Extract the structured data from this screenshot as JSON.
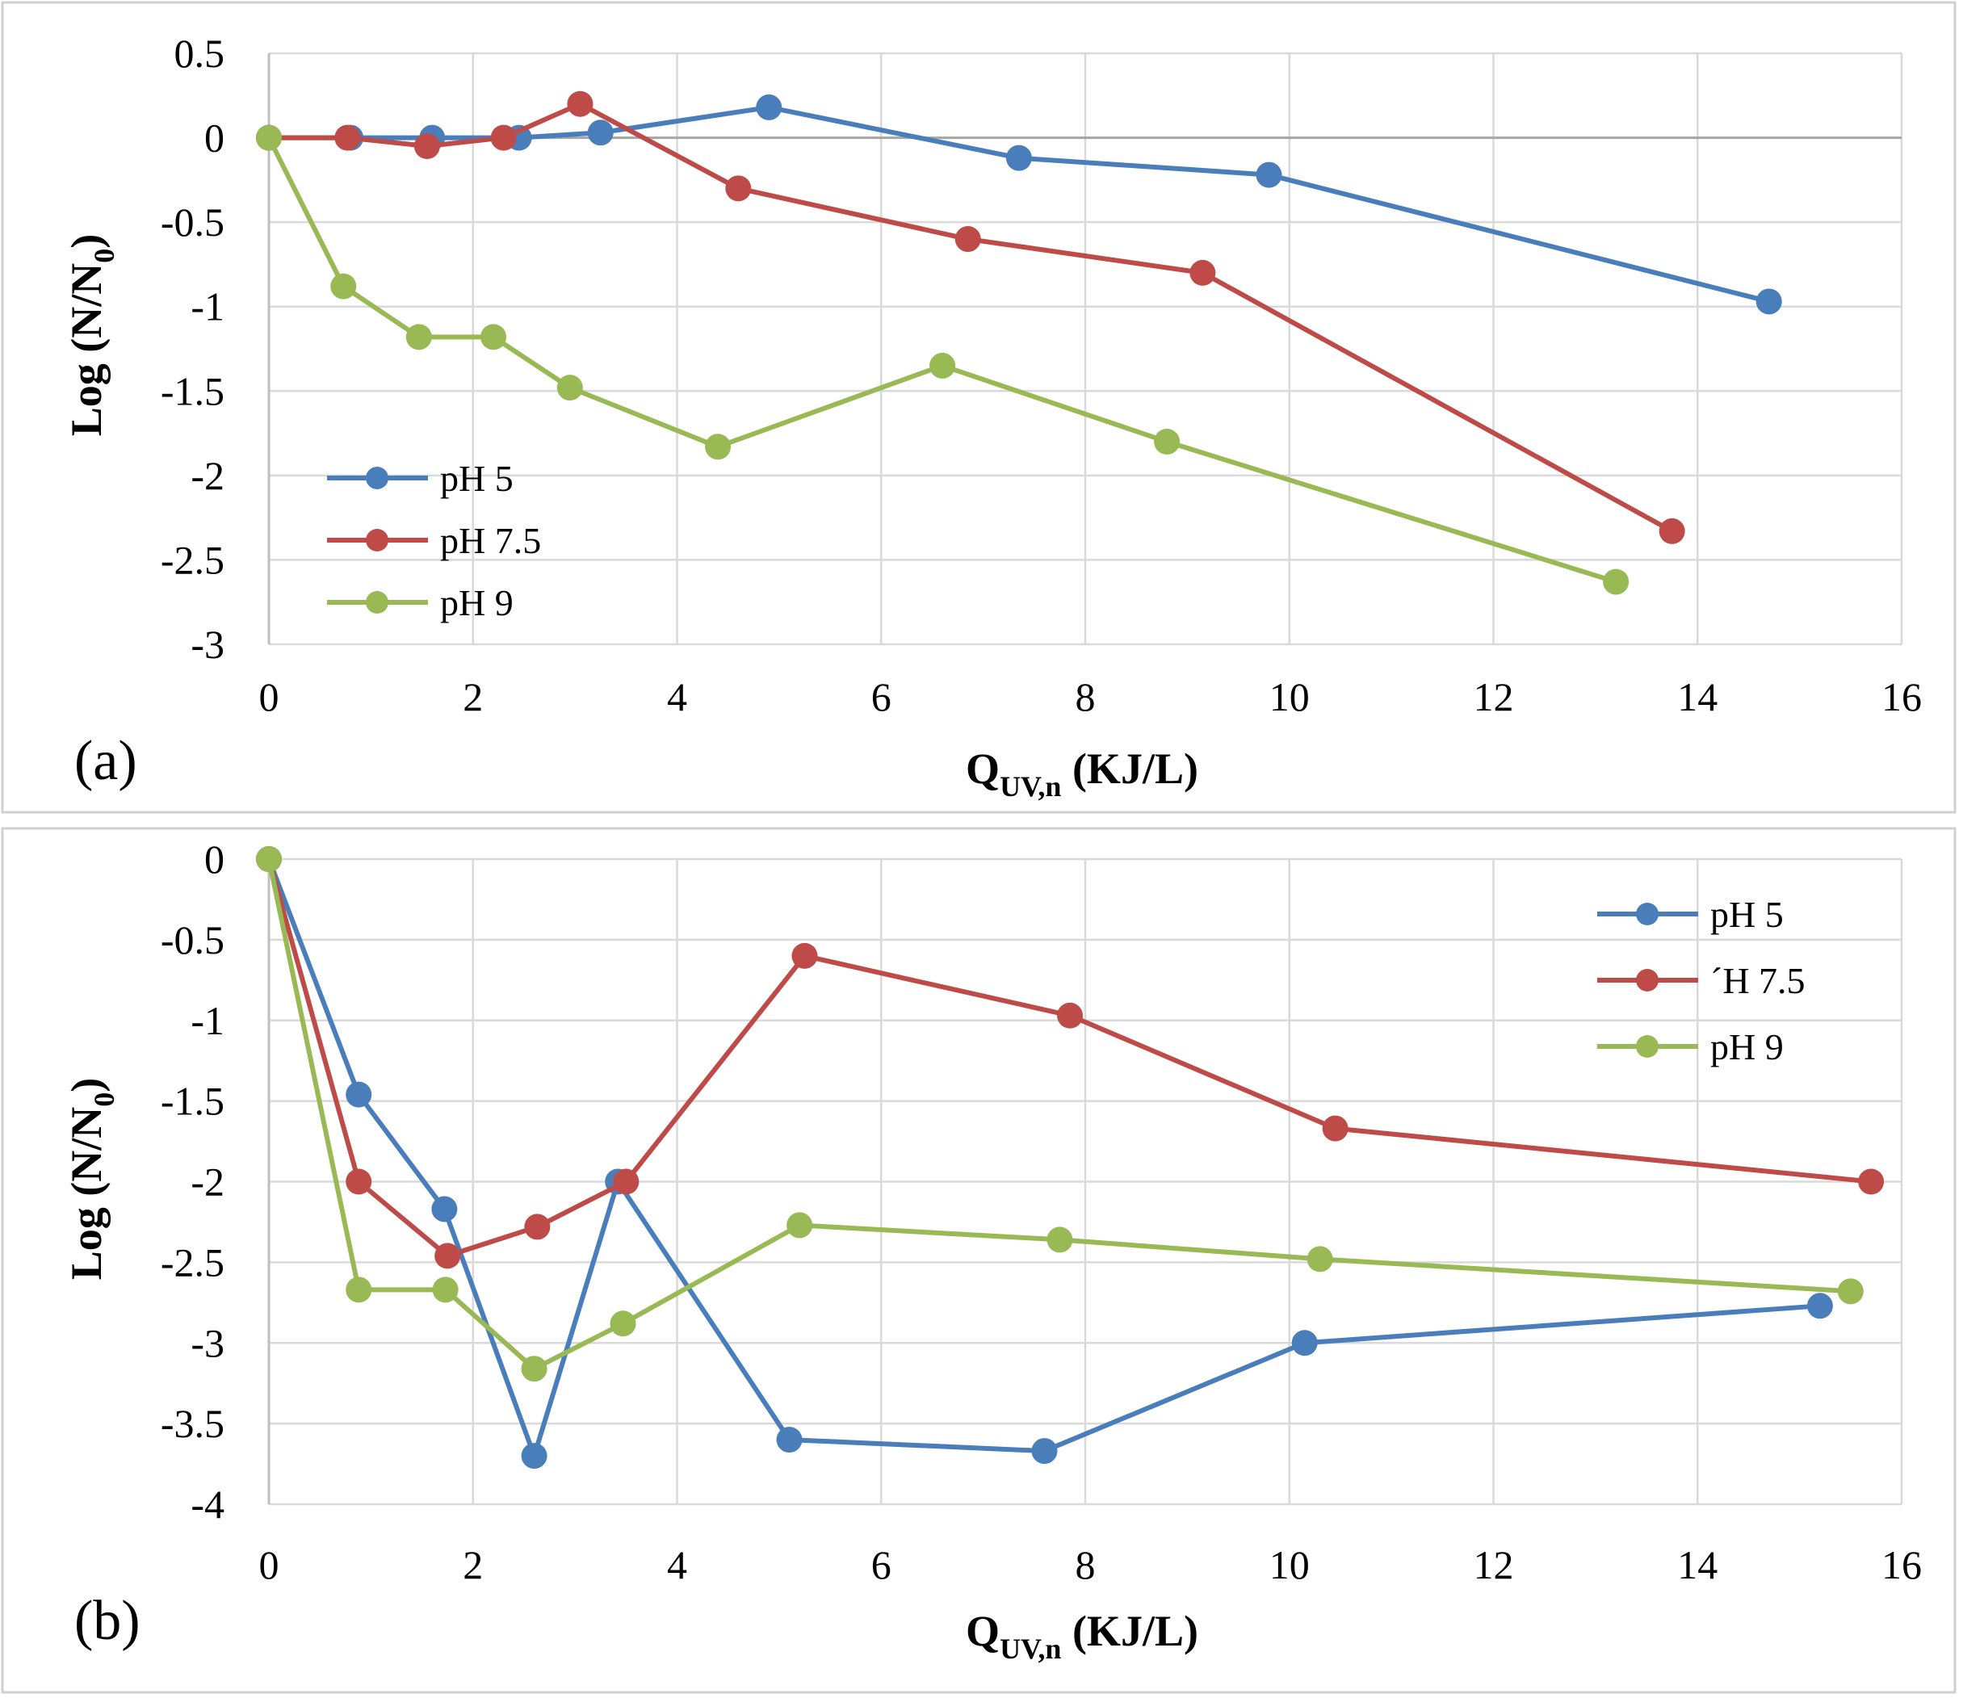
{
  "chart_data": [
    {
      "type": "line",
      "panel_label": "(a)",
      "xlabel": {
        "main": "Q",
        "sub": "UV,n",
        "unit": " (KJ/L)"
      },
      "ylabel": {
        "main": "Log (N/N",
        "sub": "0",
        "close": ")"
      },
      "xlim": [
        0,
        16
      ],
      "ylim": [
        -3,
        0.5
      ],
      "xticks": [
        0,
        2,
        4,
        6,
        8,
        10,
        12,
        14,
        16
      ],
      "yticks": [
        0.5,
        0,
        -0.5,
        -1,
        -1.5,
        -2,
        -2.5,
        -3
      ],
      "ytick_labels": [
        "0.5",
        "0",
        "-0.5",
        "-1",
        "-1.5",
        "-2",
        "-2.5",
        "-3"
      ],
      "legend_position": "bottom-left",
      "series": [
        {
          "name": "pH 5",
          "color": "#4a7ebb",
          "x": [
            0,
            0.8,
            1.6,
            2.45,
            3.25,
            4.9,
            7.35,
            9.8,
            14.7
          ],
          "y": [
            0,
            0,
            0,
            0,
            0.03,
            0.18,
            -0.12,
            -0.22,
            -0.97
          ]
        },
        {
          "name": "pH 7.5",
          "color": "#be4b48",
          "x": [
            0,
            0.77,
            1.55,
            2.3,
            3.05,
            4.6,
            6.85,
            9.15,
            13.75
          ],
          "y": [
            0,
            0,
            -0.05,
            0,
            0.2,
            -0.3,
            -0.6,
            -0.8,
            -2.33
          ]
        },
        {
          "name": "pH 9",
          "color": "#98b954",
          "x": [
            0,
            0.73,
            1.47,
            2.2,
            2.95,
            4.4,
            6.6,
            8.8,
            13.2
          ],
          "y": [
            -0.0,
            -0.88,
            -1.18,
            -1.18,
            -1.48,
            -1.83,
            -1.35,
            -1.8,
            -2.63
          ]
        }
      ]
    },
    {
      "type": "line",
      "panel_label": "(b)",
      "xlabel": {
        "main": "Q",
        "sub": "UV,n",
        "unit": " (KJ/L)"
      },
      "ylabel": {
        "main": "Log (N/N",
        "sub": "0",
        "close": ")"
      },
      "xlim": [
        0,
        16
      ],
      "ylim": [
        -4,
        0
      ],
      "xticks": [
        0,
        2,
        4,
        6,
        8,
        10,
        12,
        14,
        16
      ],
      "yticks": [
        0,
        -0.5,
        -1,
        -1.5,
        -2,
        -2.5,
        -3,
        -3.5,
        -4
      ],
      "ytick_labels": [
        "0",
        "-0.5",
        "-1",
        "-1.5",
        "-2",
        "-2.5",
        "-3",
        "-3.5",
        "-4"
      ],
      "legend_position": "top-right",
      "series": [
        {
          "name": "pH 5",
          "color": "#4a7ebb",
          "x": [
            0,
            0.88,
            1.72,
            2.6,
            3.42,
            5.1,
            7.6,
            10.15,
            15.2
          ],
          "y": [
            0,
            -1.46,
            -2.17,
            -3.7,
            -2.0,
            -3.6,
            -3.67,
            -3.0,
            -2.77
          ]
        },
        {
          "name": "´H 7.5",
          "color": "#be4b48",
          "x": [
            0,
            0.88,
            1.75,
            2.63,
            3.5,
            5.25,
            7.85,
            10.45,
            15.7
          ],
          "y": [
            0,
            -2.0,
            -2.46,
            -2.28,
            -2.0,
            -0.6,
            -0.97,
            -1.67,
            -2.0
          ]
        },
        {
          "name": "pH 9",
          "color": "#98b954",
          "x": [
            0,
            0.88,
            1.73,
            2.6,
            3.47,
            5.2,
            7.75,
            10.3,
            15.5
          ],
          "y": [
            0,
            -2.67,
            -2.67,
            -3.16,
            -2.88,
            -2.27,
            -2.36,
            -2.48,
            -2.68
          ]
        }
      ]
    }
  ]
}
